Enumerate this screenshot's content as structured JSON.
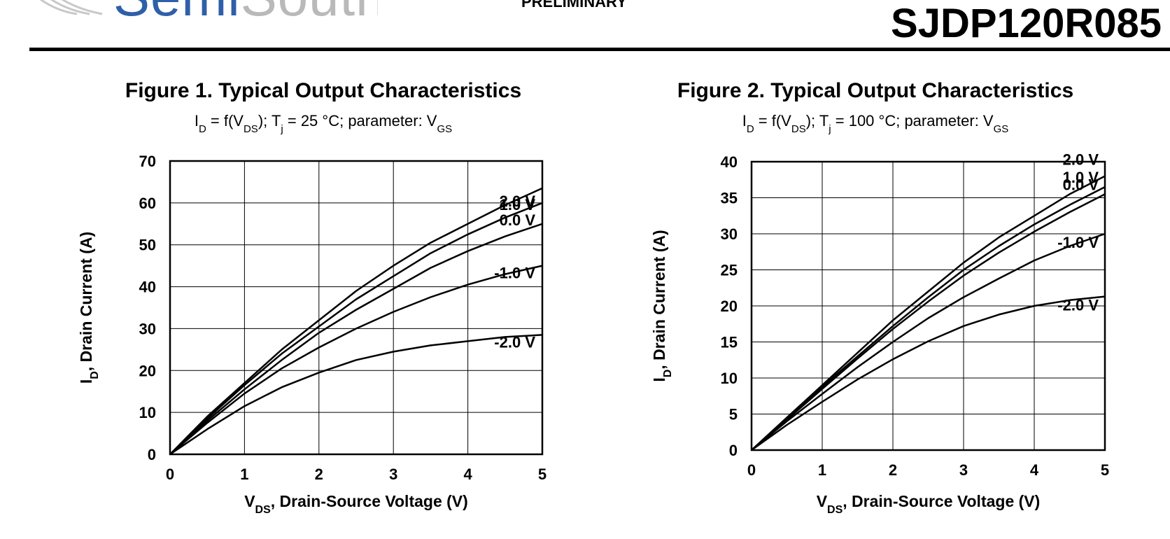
{
  "header": {
    "logo": {
      "brand_part1": "Semi",
      "brand_part2": "South"
    },
    "status": "PRELIMINARY",
    "part_number": "SJDP120R085"
  },
  "colors": {
    "logo_blue": "#2f5fa8",
    "logo_gray": "#b9b9b9",
    "ink": "#000000"
  },
  "chart_data": [
    {
      "type": "line",
      "title": "Figure 1.  Typical Output Characteristics",
      "subtitle": {
        "a": "I",
        "a_sub": "D",
        "b": " = f(V",
        "b_sub": "DS",
        "c": "); T",
        "c_sub": "j",
        "d": " = 25 °C; parameter: V",
        "d_sub": "GS"
      },
      "xlabel": {
        "main": "V",
        "sub": "DS",
        "rest": ", Drain-Source Voltage (V)"
      },
      "ylabel": {
        "main": "I",
        "sub": "D",
        "rest": ", Drain Current (A)"
      },
      "xlim": [
        0,
        5
      ],
      "ylim": [
        0,
        70
      ],
      "xticks": [
        0,
        1,
        2,
        3,
        4,
        5
      ],
      "yticks": [
        0,
        10,
        20,
        30,
        40,
        50,
        60,
        70
      ],
      "grid": true,
      "series": [
        {
          "name": "2.0 V",
          "x": [
            0,
            0.5,
            1,
            1.5,
            2,
            2.5,
            3,
            3.5,
            4,
            4.5,
            5
          ],
          "y": [
            0,
            9,
            17,
            25,
            32,
            39,
            45,
            50.5,
            55,
            59.5,
            63.5
          ]
        },
        {
          "name": "1.0 V",
          "x": [
            0,
            0.5,
            1,
            1.5,
            2,
            2.5,
            3,
            3.5,
            4,
            4.5,
            5
          ],
          "y": [
            0,
            8.5,
            16.5,
            24,
            30.5,
            37,
            42.5,
            48,
            52.5,
            56.5,
            60
          ]
        },
        {
          "name": "0.0 V",
          "x": [
            0,
            0.5,
            1,
            1.5,
            2,
            2.5,
            3,
            3.5,
            4,
            4.5,
            5
          ],
          "y": [
            0,
            8,
            15.5,
            22.5,
            29,
            34.5,
            39.5,
            44.5,
            48.5,
            52,
            55
          ]
        },
        {
          "name": "-1.0 V",
          "x": [
            0,
            0.5,
            1,
            1.5,
            2,
            2.5,
            3,
            3.5,
            4,
            4.5,
            5
          ],
          "y": [
            0,
            7.5,
            14.5,
            20.5,
            25.5,
            30,
            34,
            37.5,
            40.5,
            43,
            45
          ]
        },
        {
          "name": "-2.0 V",
          "x": [
            0,
            0.5,
            1,
            1.5,
            2,
            2.5,
            3,
            3.5,
            4,
            4.5,
            5
          ],
          "y": [
            0,
            6,
            11.5,
            16,
            19.5,
            22.5,
            24.5,
            26,
            27,
            28,
            28.5
          ]
        }
      ]
    },
    {
      "type": "line",
      "title": "Figure 2.  Typical Output Characteristics",
      "subtitle": {
        "a": "I",
        "a_sub": "D",
        "b": " = f(V",
        "b_sub": "DS",
        "c": "); T",
        "c_sub": "j",
        "d": " = 100 °C; parameter: V",
        "d_sub": "GS"
      },
      "xlabel": {
        "main": "V",
        "sub": "DS",
        "rest": ", Drain-Source Voltage (V)"
      },
      "ylabel": {
        "main": "I",
        "sub": "D",
        "rest": ", Drain Current (A)"
      },
      "xlim": [
        0,
        5
      ],
      "ylim": [
        0,
        40
      ],
      "xticks": [
        0,
        1,
        2,
        3,
        4,
        5
      ],
      "yticks": [
        0,
        5,
        10,
        15,
        20,
        25,
        30,
        35,
        40
      ],
      "grid": true,
      "series": [
        {
          "name": "2.0 V",
          "x": [
            0,
            0.5,
            1,
            1.5,
            2,
            2.5,
            3,
            3.5,
            4,
            4.5,
            5
          ],
          "y": [
            0,
            4.5,
            9,
            13.5,
            18,
            22,
            26,
            29.5,
            32.5,
            35.5,
            38
          ]
        },
        {
          "name": "1.0 V",
          "x": [
            0,
            0.5,
            1,
            1.5,
            2,
            2.5,
            3,
            3.5,
            4,
            4.5,
            5
          ],
          "y": [
            0,
            4.3,
            8.8,
            13,
            17.2,
            21.2,
            25,
            28.3,
            31.3,
            34,
            36.5
          ]
        },
        {
          "name": "0.0 V",
          "x": [
            0,
            0.5,
            1,
            1.5,
            2,
            2.5,
            3,
            3.5,
            4,
            4.5,
            5
          ],
          "y": [
            0,
            4.2,
            8.5,
            12.7,
            16.8,
            20.6,
            24.2,
            27.4,
            30.3,
            33,
            35.5
          ]
        },
        {
          "name": "-1.0 V",
          "x": [
            0,
            0.5,
            1,
            1.5,
            2,
            2.5,
            3,
            3.5,
            4,
            4.5,
            5
          ],
          "y": [
            0,
            4,
            7.8,
            11.5,
            15,
            18.3,
            21.2,
            23.8,
            26.3,
            28.3,
            30
          ]
        },
        {
          "name": "-2.0 V",
          "x": [
            0,
            0.5,
            1,
            1.5,
            2,
            2.5,
            3,
            3.5,
            4,
            4.5,
            5
          ],
          "y": [
            0,
            3.5,
            6.7,
            9.8,
            12.6,
            15.1,
            17.2,
            18.8,
            20,
            20.8,
            21.3
          ]
        }
      ]
    }
  ]
}
